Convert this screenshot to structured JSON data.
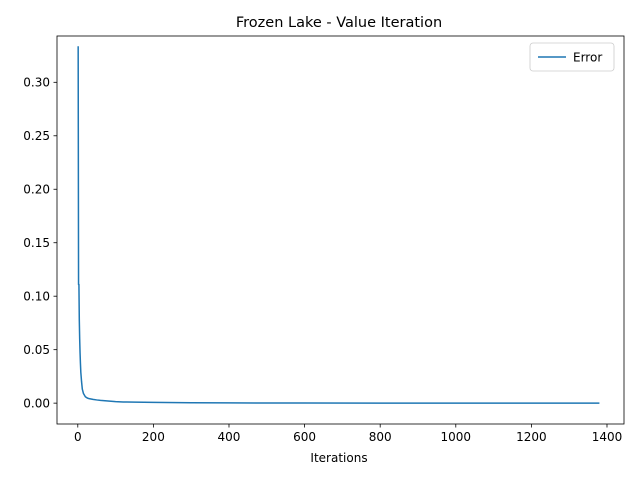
{
  "chart_data": {
    "type": "line",
    "title": "Frozen Lake - Value Iteration",
    "xlabel": "Iterations",
    "ylabel": "",
    "xlim": [
      -55,
      1445
    ],
    "ylim": [
      -0.0195,
      0.3433
    ],
    "xticks": [
      0,
      200,
      400,
      600,
      800,
      1000,
      1200,
      1400
    ],
    "yticks": [
      0.0,
      0.05,
      0.1,
      0.15,
      0.2,
      0.25,
      0.3
    ],
    "ytick_labels": [
      "0.00",
      "0.05",
      "0.10",
      "0.15",
      "0.20",
      "0.25",
      "0.30"
    ],
    "grid": false,
    "legend": {
      "position": "top-right",
      "entries": [
        "Error"
      ]
    },
    "colors": {
      "Error": "#1f77b4"
    },
    "series": [
      {
        "name": "Error",
        "x": [
          1,
          2,
          3,
          4,
          5,
          6,
          7,
          8,
          10,
          12,
          15,
          20,
          25,
          30,
          40,
          50,
          60,
          80,
          100,
          120,
          150,
          200,
          300,
          400,
          600,
          800,
          1000,
          1200,
          1378
        ],
        "y": [
          0.333,
          0.111,
          0.111,
          0.078,
          0.06,
          0.047,
          0.037,
          0.029,
          0.02,
          0.013,
          0.009,
          0.006,
          0.0048,
          0.0042,
          0.0035,
          0.003,
          0.0026,
          0.002,
          0.0014,
          0.0011,
          0.0009,
          0.0007,
          0.0004,
          0.0002,
          0.0001,
          5e-05,
          3e-05,
          2e-05,
          1e-05
        ]
      }
    ]
  }
}
